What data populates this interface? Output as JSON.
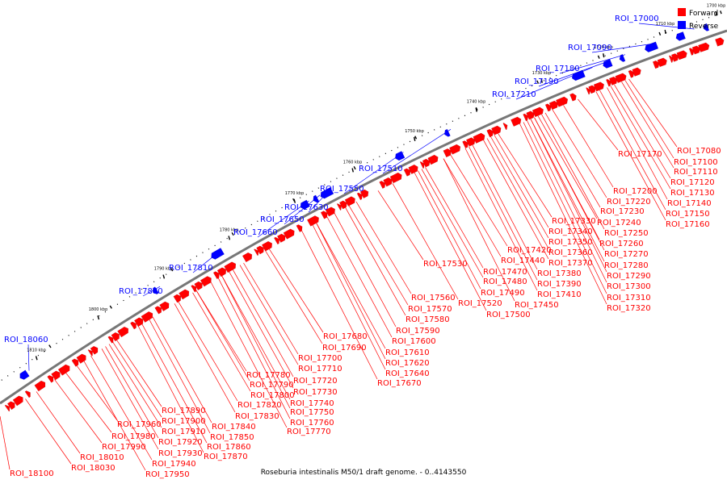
{
  "caption": "Roseburia intestinalis M50/1 draft genome. - 0..4143550",
  "colors": {
    "forward": "#ff0000",
    "reverse": "#0000ff",
    "backbone": "#777777",
    "leader_fwd": "#ff0000",
    "leader_rev": "#0000ff"
  },
  "legend": [
    {
      "label": "Forward",
      "color": "#ff0000"
    },
    {
      "label": "Reverse",
      "color": "#0000ff"
    }
  ],
  "kbp_ticks": [
    "1700 kbp",
    "1710 kbp",
    "1720 kbp",
    "1730 kbp",
    "1740 kbp",
    "1750 kbp",
    "1760 kbp",
    "1770 kbp",
    "1780 kbp",
    "1790 kbp",
    "1800 kbp",
    "1810 kbp"
  ],
  "reverse_labels": [
    "ROI_17000",
    "ROI_17090",
    "ROI_17180",
    "ROI_17190",
    "ROI_17210",
    "ROI_17510",
    "ROI_17550",
    "ROI_17630",
    "ROI_17650",
    "ROI_17660",
    "ROI_17810",
    "ROI_17880",
    "ROI_18060"
  ],
  "forward_labels": [
    "ROI_17080",
    "ROI_17100",
    "ROI_17110",
    "ROI_17120",
    "ROI_17130",
    "ROI_17140",
    "ROI_17150",
    "ROI_17160",
    "ROI_17170",
    "ROI_17200",
    "ROI_17220",
    "ROI_17230",
    "ROI_17240",
    "ROI_17250",
    "ROI_17260",
    "ROI_17270",
    "ROI_17280",
    "ROI_17290",
    "ROI_17300",
    "ROI_17310",
    "ROI_17320",
    "ROI_17330",
    "ROI_17340",
    "ROI_17350",
    "ROI_17360",
    "ROI_17370",
    "ROI_17380",
    "ROI_17390",
    "ROI_17410",
    "ROI_17420",
    "ROI_17440",
    "ROI_17450",
    "ROI_17470",
    "ROI_17480",
    "ROI_17490",
    "ROI_17500",
    "ROI_17520",
    "ROI_17530",
    "ROI_17560",
    "ROI_17570",
    "ROI_17580",
    "ROI_17590",
    "ROI_17600",
    "ROI_17610",
    "ROI_17620",
    "ROI_17640",
    "ROI_17670",
    "ROI_17680",
    "ROI_17690",
    "ROI_17700",
    "ROI_17710",
    "ROI_17720",
    "ROI_17730",
    "ROI_17740",
    "ROI_17750",
    "ROI_17760",
    "ROI_17770",
    "ROI_17780",
    "ROI_17790",
    "ROI_17800",
    "ROI_17820",
    "ROI_17830",
    "ROI_17840",
    "ROI_17850",
    "ROI_17860",
    "ROI_17870",
    "ROI_17890",
    "ROI_17900",
    "ROI_17910",
    "ROI_17920",
    "ROI_17930",
    "ROI_17940",
    "ROI_17950",
    "ROI_17960",
    "ROI_17980",
    "ROI_17990",
    "ROI_18010",
    "ROI_18030",
    "ROI_18100"
  ]
}
